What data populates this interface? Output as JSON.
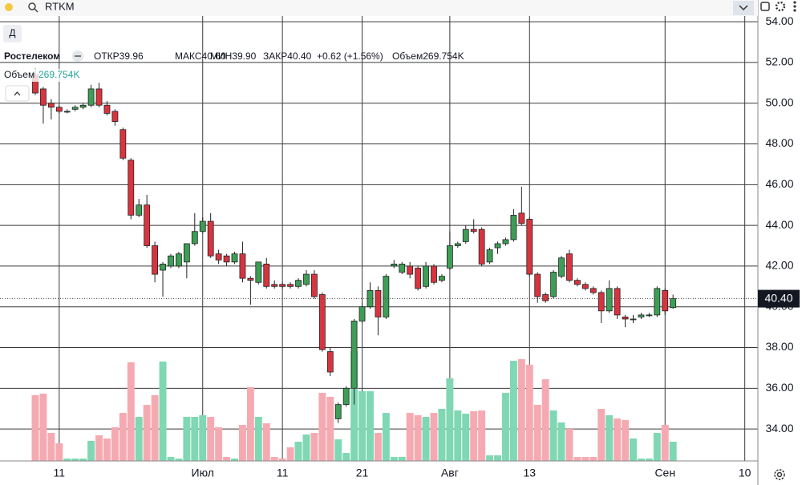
{
  "header": {
    "symbol": "RTKM",
    "interval": "Д",
    "name": "Ростелеком",
    "stats": [
      "ОТКР39.96",
      "МАКС40.60",
      "МИН39.90",
      "ЗАКР40.40",
      "+0.62 (+1.56%)",
      "Объем269.754K"
    ],
    "volume_label": "Объем",
    "volume_value": "269.754K"
  },
  "chart_data": {
    "type": "candlestick",
    "categories": [
      null,
      null,
      null,
      "11",
      null,
      null,
      null,
      null,
      null,
      null,
      null,
      null,
      null,
      null,
      null,
      null,
      null,
      null,
      null,
      null,
      null,
      "Июл",
      null,
      null,
      null,
      null,
      null,
      null,
      null,
      null,
      null,
      "11",
      null,
      null,
      null,
      null,
      null,
      null,
      null,
      null,
      null,
      "21",
      null,
      null,
      null,
      null,
      null,
      null,
      null,
      null,
      null,
      null,
      "Авг",
      null,
      null,
      null,
      null,
      null,
      null,
      null,
      null,
      null,
      "13",
      null,
      null,
      null,
      null,
      null,
      null,
      null,
      null,
      null,
      null,
      null,
      null,
      null,
      null,
      null,
      null,
      "Сен",
      null,
      null,
      null,
      null,
      null,
      null,
      null,
      null,
      null,
      "10"
    ],
    "open": [
      51.4,
      50.7,
      50.0,
      49.8,
      49.6,
      49.7,
      49.8,
      49.9,
      50.7,
      49.9,
      49.6,
      48.7,
      47.2,
      44.5,
      45.0,
      43.0,
      41.8,
      42.0,
      42.0,
      42.2,
      43.1,
      43.7,
      44.2,
      42.6,
      42.5,
      42.2,
      42.6,
      41.4,
      41.2,
      42.1,
      41.1,
      41.1,
      41.1,
      41.0,
      41.1,
      41.6,
      40.6,
      37.8,
      34.5,
      35.2,
      36.0,
      39.3,
      40.0,
      40.8,
      39.5,
      42.0,
      41.7,
      42.0,
      41.9,
      41.0,
      42.0,
      41.3,
      41.9,
      43.0,
      43.2,
      43.8,
      43.8,
      42.2,
      42.9,
      43.1,
      43.3,
      44.6,
      44.3,
      41.6,
      40.6,
      40.5,
      41.5,
      42.6,
      41.3,
      41.1,
      40.9,
      40.7,
      39.8,
      40.9,
      39.5,
      39.4,
      39.5,
      39.6,
      39.6,
      40.8,
      39.96,
      null,
      null,
      null,
      null,
      null,
      null,
      null,
      null,
      null
    ],
    "high": [
      51.7,
      50.8,
      50.2,
      49.9,
      49.7,
      49.9,
      50.0,
      50.9,
      51.0,
      50.1,
      49.7,
      48.8,
      47.3,
      45.3,
      45.5,
      43.2,
      42.2,
      42.6,
      42.7,
      43.1,
      44.6,
      44.4,
      44.6,
      42.8,
      42.6,
      42.7,
      43.2,
      41.5,
      42.2,
      42.4,
      41.3,
      41.2,
      41.2,
      41.4,
      41.8,
      41.8,
      40.7,
      38.0,
      35.3,
      36.1,
      39.4,
      40.2,
      41.2,
      41.0,
      41.6,
      42.3,
      42.2,
      42.2,
      42.0,
      42.2,
      42.1,
      41.6,
      43.7,
      43.2,
      44.0,
      44.3,
      43.9,
      42.9,
      43.2,
      43.4,
      44.8,
      45.9,
      44.4,
      41.7,
      40.7,
      41.8,
      42.5,
      42.8,
      41.4,
      41.2,
      41.0,
      40.8,
      41.3,
      41.0,
      39.6,
      39.6,
      39.7,
      39.7,
      41.0,
      40.9,
      40.6,
      null,
      null,
      null,
      null,
      null,
      null,
      null,
      null,
      null
    ],
    "low": [
      50.4,
      49.0,
      49.2,
      49.5,
      49.5,
      49.6,
      49.7,
      49.8,
      49.8,
      49.4,
      48.9,
      47.2,
      44.3,
      44.4,
      42.9,
      41.2,
      40.5,
      41.9,
      41.9,
      41.4,
      43.0,
      43.6,
      42.4,
      42.1,
      42.0,
      42.1,
      41.2,
      40.1,
      41.1,
      40.9,
      40.9,
      40.9,
      40.9,
      40.9,
      41.0,
      40.4,
      37.8,
      36.6,
      34.3,
      35.1,
      35.2,
      39.2,
      39.9,
      38.6,
      39.4,
      41.9,
      41.6,
      41.4,
      40.8,
      40.9,
      41.1,
      41.2,
      41.8,
      42.9,
      43.1,
      43.6,
      42.0,
      42.1,
      42.6,
      43.0,
      43.2,
      44.0,
      41.5,
      40.2,
      40.2,
      40.4,
      41.4,
      41.2,
      41.0,
      40.8,
      40.6,
      39.2,
      39.7,
      39.4,
      39.0,
      39.2,
      39.4,
      39.5,
      39.5,
      39.6,
      39.9,
      null,
      null,
      null,
      null,
      null,
      null,
      null,
      null,
      null
    ],
    "close": [
      50.5,
      49.9,
      49.8,
      49.6,
      49.6,
      49.8,
      49.9,
      50.7,
      49.9,
      49.5,
      49.1,
      47.3,
      44.5,
      45.0,
      43.0,
      41.6,
      42.1,
      42.5,
      42.6,
      43.1,
      43.7,
      44.2,
      42.5,
      42.3,
      42.2,
      42.6,
      41.4,
      41.3,
      42.2,
      41.0,
      41.0,
      41.0,
      41.0,
      41.3,
      41.6,
      40.5,
      37.9,
      36.8,
      35.2,
      36.0,
      39.3,
      40.0,
      40.8,
      39.5,
      41.5,
      42.1,
      42.1,
      41.6,
      40.9,
      42.0,
      41.2,
      41.5,
      43.0,
      43.1,
      43.8,
      43.7,
      42.1,
      42.8,
      43.1,
      43.3,
      44.5,
      44.1,
      41.6,
      40.5,
      40.3,
      41.7,
      42.4,
      41.3,
      41.1,
      40.9,
      40.7,
      39.8,
      40.9,
      39.6,
      39.4,
      39.4,
      39.6,
      39.6,
      40.9,
      39.8,
      40.4,
      null,
      null,
      null,
      null,
      null,
      null,
      null,
      null,
      null
    ],
    "volume": [
      922,
      944,
      393,
      247,
      34,
      34,
      34,
      281,
      360,
      315,
      472,
      674,
      1383,
      618,
      787,
      922,
      1394,
      56,
      34,
      618,
      618,
      641,
      618,
      472,
      56,
      34,
      506,
      1034,
      618,
      528,
      56,
      34,
      191,
      270,
      371,
      393,
      955,
      899,
      303,
      112,
      1540,
      978,
      978,
      393,
      674,
      56,
      56,
      674,
      641,
      618,
      674,
      731,
      1158,
      708,
      663,
      697,
      708,
      79,
      79,
      955,
      1405,
      1427,
      1349,
      787,
      1146,
      708,
      540,
      450,
      56,
      56,
      56,
      731,
      641,
      596,
      573,
      315,
      34,
      34,
      393,
      506,
      269.754,
      null,
      null,
      null,
      null,
      null,
      null,
      null,
      null,
      null
    ],
    "up_color": "#3d9e56",
    "down_color": "#d8343f",
    "up_volume_color": "#7fd8b3",
    "down_volume_color": "#f5aab2",
    "ylim": [
      32.43,
      54.28
    ],
    "yticks": [
      {
        "value": 34,
        "label": "34.00"
      },
      {
        "value": 36,
        "label": "36.00"
      },
      {
        "value": 38,
        "label": "38.00"
      },
      {
        "value": 40,
        "label": "40.00"
      },
      {
        "value": 42,
        "label": "42.00"
      },
      {
        "value": 44,
        "label": "44.00"
      },
      {
        "value": 46,
        "label": "46.00"
      },
      {
        "value": 48,
        "label": "48.00"
      },
      {
        "value": 50,
        "label": "50.00"
      },
      {
        "value": 52,
        "label": "52.00"
      },
      {
        "value": 54,
        "label": "54.00"
      }
    ],
    "last_label": {
      "value": 40.4,
      "label": "40.40"
    },
    "grid": true
  }
}
